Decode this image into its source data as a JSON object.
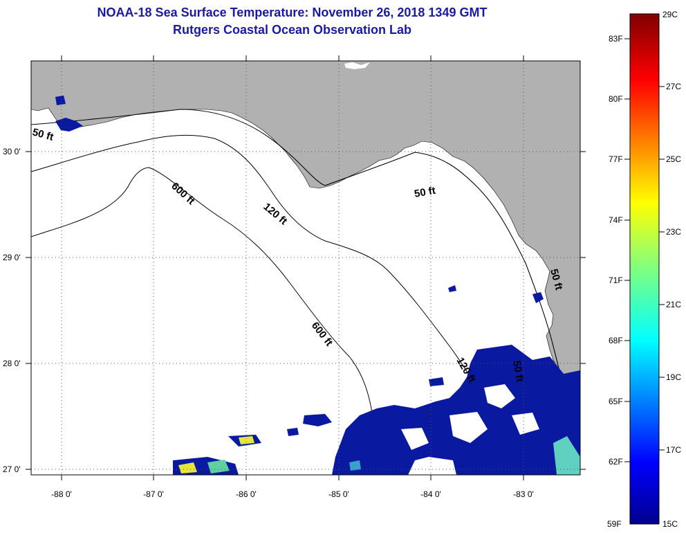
{
  "header": {
    "title": "NOAA-18 Sea Surface Temperature:  November 26, 2018 1349 GMT",
    "subtitle": "Rutgers Coastal Ocean Observation Lab"
  },
  "map": {
    "lat_labels": [
      "30 0'",
      "29 0'",
      "28 0'",
      "27 0'"
    ],
    "lon_labels": [
      "-88 0'",
      "-87 0'",
      "-86 0'",
      "-85 0'",
      "-84 0'",
      "-83 0'"
    ],
    "contours": {
      "c50a": "50 ft",
      "c600a": "600 ft",
      "c120a": "120 ft",
      "c50b": "50 ft",
      "c600b": "600 ft",
      "c120b": "120 ft",
      "c50c": "50 ft",
      "c50d": "50 ft"
    },
    "colors": {
      "land": "#b1b1b1",
      "water": "#ffffff",
      "sst_cold": "#0a1aa0"
    }
  },
  "colorbar": {
    "fahrenheit_labels": [
      "83F",
      "80F",
      "77F",
      "74F",
      "71F",
      "68F",
      "65F",
      "62F"
    ],
    "celsius_labels": [
      "27C",
      "25C",
      "23C",
      "21C",
      "19C",
      "17C"
    ],
    "top_f": "",
    "top_c": "29C",
    "bottom_f": "59F",
    "bottom_c": "15C",
    "range_c": [
      15,
      29
    ]
  }
}
